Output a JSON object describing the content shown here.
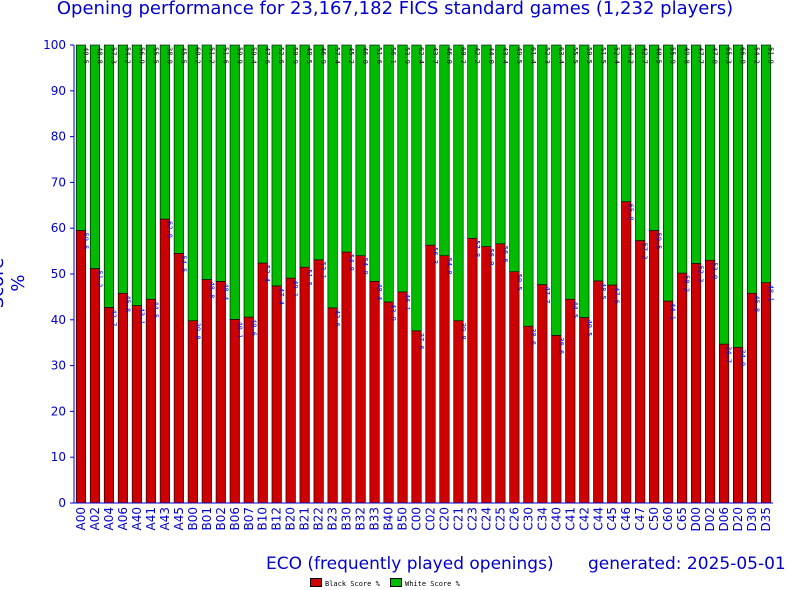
{
  "chart_data": {
    "type": "bar",
    "title": "Opening performance for 23,167,182 FICS standard games (1,232 players)",
    "xlabel": "ECO (frequently played openings)",
    "ylabel": "Score %",
    "generated": "generated: 2025-05-01",
    "ylim": [
      0,
      100
    ],
    "yticks": [
      0,
      10,
      20,
      30,
      40,
      50,
      60,
      70,
      80,
      90,
      100
    ],
    "grid": false,
    "stacked": true,
    "legend_placement": "bottom-center",
    "categories": [
      "A00",
      "A02",
      "A04",
      "A06",
      "A40",
      "A41",
      "A43",
      "A45",
      "B00",
      "B01",
      "B02",
      "B06",
      "B07",
      "B10",
      "B12",
      "B20",
      "B21",
      "B22",
      "B23",
      "B30",
      "B32",
      "B33",
      "B40",
      "B50",
      "C00",
      "C02",
      "C20",
      "C21",
      "C23",
      "C24",
      "C25",
      "C26",
      "C30",
      "C34",
      "C40",
      "C41",
      "C42",
      "C44",
      "C45",
      "C46",
      "C47",
      "C50",
      "C60",
      "C65",
      "D00",
      "D02",
      "D06",
      "D20",
      "D30",
      "D35"
    ],
    "series": [
      {
        "name": "Black Score %",
        "color": "#cc0000",
        "values": [
          59.5,
          51.2,
          42.7,
          45.8,
          43.1,
          44.5,
          62.0,
          54.5,
          39.8,
          48.8,
          48.4,
          40.1,
          40.6,
          52.4,
          47.4,
          49.1,
          51.5,
          53.1,
          42.6,
          54.8,
          54.0,
          48.4,
          43.9,
          46.1,
          37.6,
          56.3,
          54.0,
          39.8,
          57.8,
          56.0,
          56.6,
          50.5,
          38.6,
          47.7,
          36.6,
          44.5,
          40.5,
          48.5,
          47.6,
          65.8,
          57.3,
          59.5,
          44.1,
          50.2,
          52.3,
          53.0,
          34.7,
          34.0,
          45.8,
          48.1
        ]
      },
      {
        "name": "White Score %",
        "color": "#00bb00",
        "values": [
          40.5,
          48.8,
          57.3,
          54.2,
          56.9,
          55.5,
          38.0,
          45.5,
          60.2,
          51.2,
          51.6,
          59.9,
          59.4,
          47.6,
          52.6,
          50.9,
          48.5,
          46.9,
          57.4,
          45.2,
          46.0,
          51.6,
          56.1,
          53.9,
          62.4,
          43.7,
          46.0,
          60.2,
          42.2,
          44.0,
          43.4,
          49.5,
          61.4,
          52.3,
          63.4,
          55.5,
          59.5,
          51.5,
          52.4,
          34.2,
          42.7,
          40.5,
          55.9,
          49.8,
          47.7,
          47.0,
          65.3,
          66.0,
          54.2,
          51.9
        ]
      }
    ]
  },
  "colors": {
    "text": "#0000cc",
    "axis": "#0000cc"
  }
}
